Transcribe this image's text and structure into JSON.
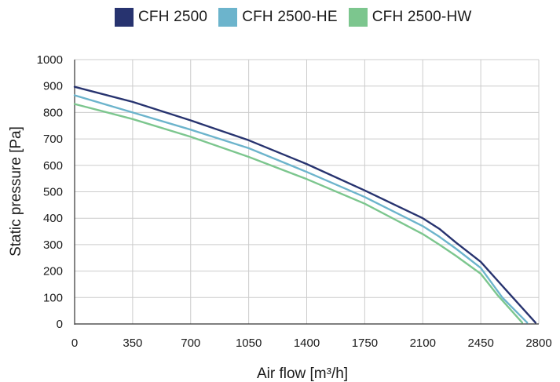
{
  "chart_data": {
    "type": "line",
    "title": "",
    "xlabel": "Air flow [m³/h]",
    "ylabel": "Static pressure [Pa]",
    "xlim": [
      0,
      2800
    ],
    "ylim": [
      0,
      1000
    ],
    "xticks": [
      0,
      350,
      700,
      1050,
      1400,
      1750,
      2100,
      2450,
      2800
    ],
    "yticks": [
      0,
      100,
      200,
      300,
      400,
      500,
      600,
      700,
      800,
      900,
      1000
    ],
    "grid": true,
    "legend_position": "top",
    "series": [
      {
        "name": "CFH 2500",
        "color": "#27336f",
        "x": [
          0,
          350,
          700,
          1050,
          1400,
          1750,
          2100,
          2200,
          2300,
          2450,
          2600,
          2780
        ],
        "y": [
          897,
          840,
          770,
          695,
          605,
          505,
          400,
          360,
          308,
          235,
          130,
          5
        ]
      },
      {
        "name": "CFH 2500-HE",
        "color": "#6cb4cc",
        "x": [
          0,
          350,
          700,
          1050,
          1400,
          1750,
          2100,
          2200,
          2300,
          2450,
          2580,
          2730
        ],
        "y": [
          865,
          800,
          735,
          665,
          575,
          480,
          370,
          330,
          285,
          212,
          100,
          5
        ]
      },
      {
        "name": "CFH 2500-HW",
        "color": "#7cc68e",
        "x": [
          0,
          350,
          700,
          1050,
          1400,
          1750,
          2100,
          2200,
          2300,
          2450,
          2550,
          2700
        ],
        "y": [
          832,
          775,
          708,
          632,
          548,
          455,
          340,
          300,
          258,
          190,
          110,
          5
        ]
      }
    ]
  }
}
